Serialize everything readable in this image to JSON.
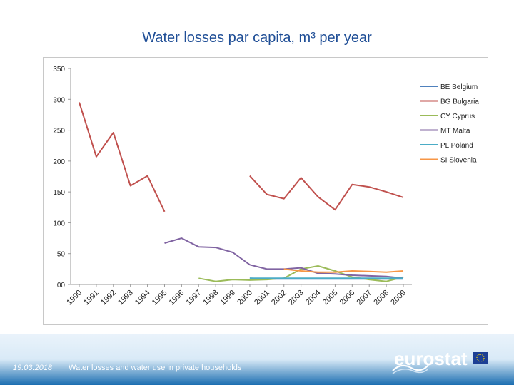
{
  "slide": {
    "title": "Water losses par capita, m³ per year",
    "footer_date": "19.03.2018",
    "footer_title": "Water losses and water use in private households",
    "logo_text": "eurostat"
  },
  "chart_data": {
    "type": "line",
    "title": "",
    "xlabel": "",
    "ylabel": "",
    "ylim": [
      0,
      350
    ],
    "y_ticks": [
      "00",
      "50",
      "100",
      "150",
      "200",
      "250",
      "300",
      "350"
    ],
    "categories": [
      "1990",
      "1991",
      "1992",
      "1993",
      "1994",
      "1995",
      "1996",
      "1997",
      "1998",
      "1999",
      "2000",
      "2001",
      "2002",
      "2003",
      "2004",
      "2005",
      "2006",
      "2007",
      "2008",
      "2009"
    ],
    "grid": false,
    "legend": "right",
    "series": [
      {
        "name": "BE Belgium",
        "color": "#4f81bd",
        "values": [
          null,
          null,
          null,
          null,
          null,
          null,
          null,
          null,
          null,
          null,
          10,
          9,
          9,
          9,
          9,
          9,
          9,
          9,
          9,
          9
        ]
      },
      {
        "name": "BG Bulgaria",
        "color": "#c0504d",
        "values": [
          295,
          207,
          246,
          160,
          176,
          118,
          null,
          null,
          null,
          null,
          176,
          146,
          139,
          173,
          142,
          121,
          162,
          158,
          150,
          141
        ]
      },
      {
        "name": "CY Cyprus",
        "color": "#9bbb59",
        "values": [
          null,
          null,
          null,
          null,
          null,
          null,
          null,
          10,
          5,
          8,
          7,
          8,
          10,
          25,
          30,
          22,
          12,
          8,
          5,
          12
        ]
      },
      {
        "name": "MT Malta",
        "color": "#8064a2",
        "values": [
          null,
          null,
          null,
          null,
          null,
          67,
          75,
          61,
          60,
          52,
          32,
          25,
          25,
          27,
          18,
          17,
          15,
          14,
          13,
          10
        ]
      },
      {
        "name": "PL Poland",
        "color": "#4bacc6",
        "values": [
          null,
          null,
          null,
          null,
          null,
          null,
          null,
          null,
          null,
          null,
          10,
          10,
          10,
          10,
          10,
          10,
          10,
          10,
          10,
          10
        ]
      },
      {
        "name": "SI Slovenia",
        "color": "#f79646",
        "values": [
          null,
          null,
          null,
          null,
          null,
          null,
          null,
          null,
          null,
          null,
          null,
          null,
          25,
          22,
          20,
          20,
          22,
          21,
          20,
          22
        ]
      }
    ]
  }
}
